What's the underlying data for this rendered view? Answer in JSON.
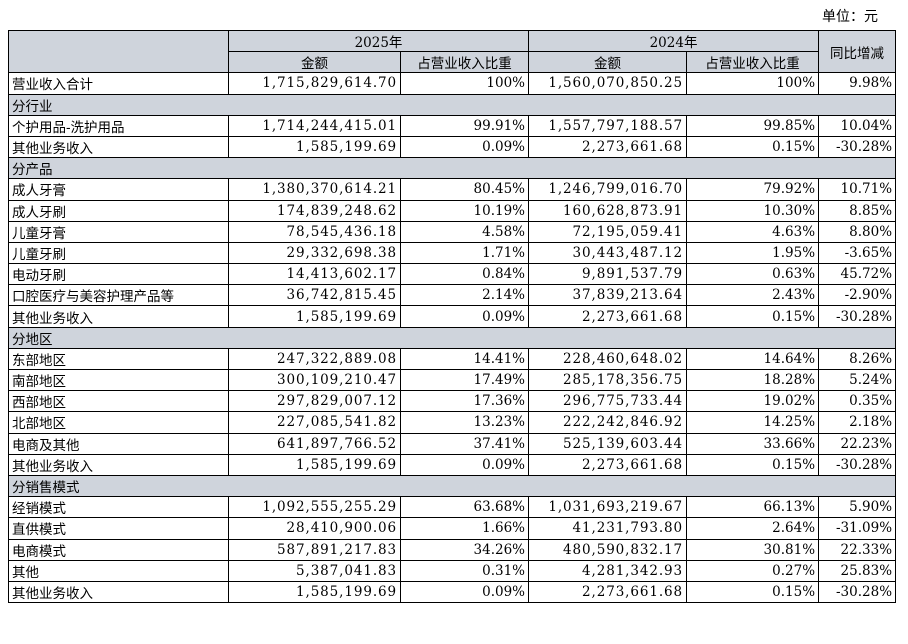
{
  "unit_label": "单位：元",
  "header": {
    "year_2025": "2025年",
    "year_2024": "2024年",
    "amount": "金额",
    "share": "占营业收入比重",
    "yoy": "同比增减"
  },
  "rows": [
    {
      "type": "data",
      "name": "营业收入合计",
      "amt25": "1,715,829,614.70",
      "pct25": "100%",
      "amt24": "1,560,070,850.25",
      "pct24": "100%",
      "yoy": "9.98%"
    },
    {
      "type": "group",
      "name": "分行业"
    },
    {
      "type": "data",
      "name": "个护用品-洗护用品",
      "amt25": "1,714,244,415.01",
      "pct25": "99.91%",
      "amt24": "1,557,797,188.57",
      "pct24": "99.85%",
      "yoy": "10.04%"
    },
    {
      "type": "data",
      "name": "其他业务收入",
      "amt25": "1,585,199.69",
      "pct25": "0.09%",
      "amt24": "2,273,661.68",
      "pct24": "0.15%",
      "yoy": "-30.28%"
    },
    {
      "type": "group",
      "name": "分产品"
    },
    {
      "type": "data",
      "name": "成人牙膏",
      "amt25": "1,380,370,614.21",
      "pct25": "80.45%",
      "amt24": "1,246,799,016.70",
      "pct24": "79.92%",
      "yoy": "10.71%"
    },
    {
      "type": "data",
      "name": "成人牙刷",
      "amt25": "174,839,248.62",
      "pct25": "10.19%",
      "amt24": "160,628,873.91",
      "pct24": "10.30%",
      "yoy": "8.85%"
    },
    {
      "type": "data",
      "name": "儿童牙膏",
      "amt25": "78,545,436.18",
      "pct25": "4.58%",
      "amt24": "72,195,059.41",
      "pct24": "4.63%",
      "yoy": "8.80%"
    },
    {
      "type": "data",
      "name": "儿童牙刷",
      "amt25": "29,332,698.38",
      "pct25": "1.71%",
      "amt24": "30,443,487.12",
      "pct24": "1.95%",
      "yoy": "-3.65%"
    },
    {
      "type": "data",
      "name": "电动牙刷",
      "amt25": "14,413,602.17",
      "pct25": "0.84%",
      "amt24": "9,891,537.79",
      "pct24": "0.63%",
      "yoy": "45.72%"
    },
    {
      "type": "data",
      "name": "口腔医疗与美容护理产品等",
      "amt25": "36,742,815.45",
      "pct25": "2.14%",
      "amt24": "37,839,213.64",
      "pct24": "2.43%",
      "yoy": "-2.90%"
    },
    {
      "type": "data",
      "name": "其他业务收入",
      "amt25": "1,585,199.69",
      "pct25": "0.09%",
      "amt24": "2,273,661.68",
      "pct24": "0.15%",
      "yoy": "-30.28%"
    },
    {
      "type": "group",
      "name": "分地区"
    },
    {
      "type": "data",
      "name": "东部地区",
      "amt25": "247,322,889.08",
      "pct25": "14.41%",
      "amt24": "228,460,648.02",
      "pct24": "14.64%",
      "yoy": "8.26%"
    },
    {
      "type": "data",
      "name": "南部地区",
      "amt25": "300,109,210.47",
      "pct25": "17.49%",
      "amt24": "285,178,356.75",
      "pct24": "18.28%",
      "yoy": "5.24%"
    },
    {
      "type": "data",
      "name": "西部地区",
      "amt25": "297,829,007.12",
      "pct25": "17.36%",
      "amt24": "296,775,733.44",
      "pct24": "19.02%",
      "yoy": "0.35%"
    },
    {
      "type": "data",
      "name": "北部地区",
      "amt25": "227,085,541.82",
      "pct25": "13.23%",
      "amt24": "222,242,846.92",
      "pct24": "14.25%",
      "yoy": "2.18%"
    },
    {
      "type": "data",
      "name": "电商及其他",
      "amt25": "641,897,766.52",
      "pct25": "37.41%",
      "amt24": "525,139,603.44",
      "pct24": "33.66%",
      "yoy": "22.23%"
    },
    {
      "type": "data",
      "name": "其他业务收入",
      "amt25": "1,585,199.69",
      "pct25": "0.09%",
      "amt24": "2,273,661.68",
      "pct24": "0.15%",
      "yoy": "-30.28%"
    },
    {
      "type": "group",
      "name": "分销售模式"
    },
    {
      "type": "data",
      "name": "经销模式",
      "amt25": "1,092,555,255.29",
      "pct25": "63.68%",
      "amt24": "1,031,693,219.67",
      "pct24": "66.13%",
      "yoy": "5.90%"
    },
    {
      "type": "data",
      "name": "直供模式",
      "amt25": "28,410,900.06",
      "pct25": "1.66%",
      "amt24": "41,231,793.80",
      "pct24": "2.64%",
      "yoy": "-31.09%"
    },
    {
      "type": "data",
      "name": "电商模式",
      "amt25": "587,891,217.83",
      "pct25": "34.26%",
      "amt24": "480,590,832.17",
      "pct24": "30.81%",
      "yoy": "22.33%"
    },
    {
      "type": "data",
      "name": "其他",
      "amt25": "5,387,041.83",
      "pct25": "0.31%",
      "amt24": "4,281,342.93",
      "pct24": "0.27%",
      "yoy": "25.83%"
    },
    {
      "type": "data",
      "name": "其他业务收入",
      "amt25": "1,585,199.69",
      "pct25": "0.09%",
      "amt24": "2,273,661.68",
      "pct24": "0.15%",
      "yoy": "-30.28%"
    }
  ]
}
